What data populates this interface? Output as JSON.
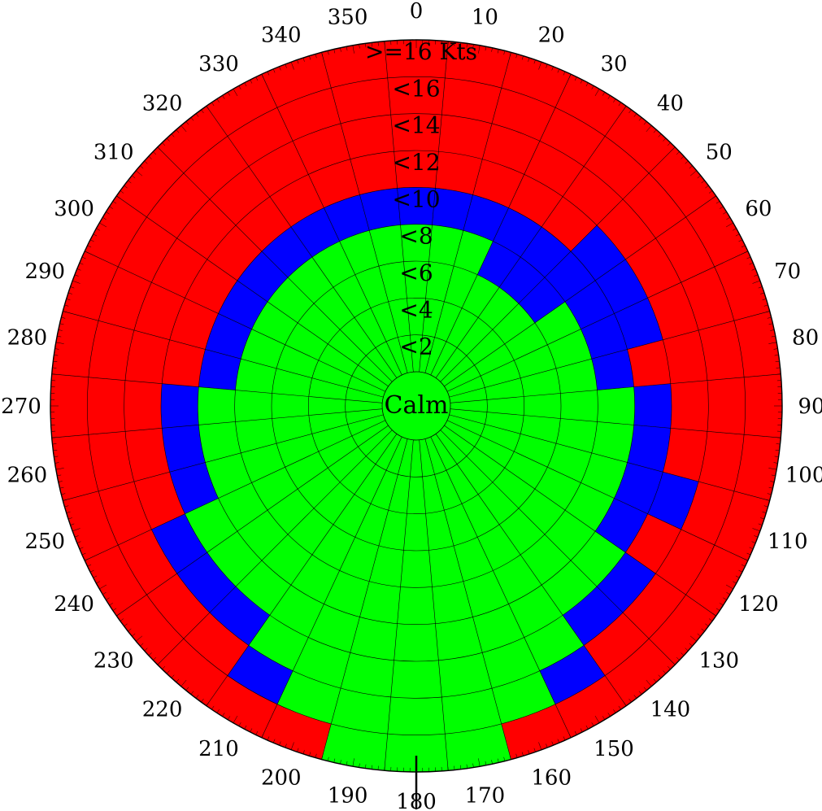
{
  "chart_data": {
    "type": "polar-area",
    "title": "",
    "center_label": "Calm",
    "unit": "Kts",
    "ring_labels": [
      "<2",
      "<4",
      "<6",
      "<8",
      "<10",
      "<12",
      "<14",
      "<16",
      ">=16 Kts"
    ],
    "ring_edges": [
      2,
      4,
      6,
      8,
      10,
      12,
      14,
      16,
      18
    ],
    "r_range": [
      0,
      18
    ],
    "direction_labels": [
      "0",
      "10",
      "20",
      "30",
      "40",
      "50",
      "60",
      "70",
      "80",
      "90",
      "100",
      "110",
      "120",
      "130",
      "140",
      "150",
      "160",
      "170",
      "180",
      "190",
      "200",
      "210",
      "220",
      "230",
      "240",
      "250",
      "260",
      "270",
      "280",
      "290",
      "300",
      "310",
      "320",
      "330",
      "340",
      "350"
    ],
    "direction_step_deg": 10,
    "colors": {
      "green": "#00ff00",
      "blue": "#0000ff",
      "red": "#ff0000",
      "grid": "#000000"
    },
    "sectors": [
      {
        "direction": 0,
        "green_to": 8,
        "blue_to": 10
      },
      {
        "direction": 10,
        "green_to": 8,
        "blue_to": 10
      },
      {
        "direction": 20,
        "green_to": 8,
        "blue_to": 10
      },
      {
        "direction": 30,
        "green_to": 6,
        "blue_to": 10
      },
      {
        "direction": 40,
        "green_to": 6,
        "blue_to": 10
      },
      {
        "direction": 50,
        "green_to": 6,
        "blue_to": 12
      },
      {
        "direction": 60,
        "green_to": 8,
        "blue_to": 12
      },
      {
        "direction": 70,
        "green_to": 8,
        "blue_to": 12
      },
      {
        "direction": 80,
        "green_to": 8,
        "blue_to": 10
      },
      {
        "direction": 90,
        "green_to": 10,
        "blue_to": 12
      },
      {
        "direction": 100,
        "green_to": 10,
        "blue_to": 12
      },
      {
        "direction": 110,
        "green_to": 10,
        "blue_to": 14
      },
      {
        "direction": 120,
        "green_to": 10,
        "blue_to": 12
      },
      {
        "direction": 130,
        "green_to": 12,
        "blue_to": 14
      },
      {
        "direction": 140,
        "green_to": 12,
        "blue_to": 14
      },
      {
        "direction": 150,
        "green_to": 14,
        "blue_to": 16
      },
      {
        "direction": 160,
        "green_to": 16,
        "blue_to": 16
      },
      {
        "direction": 170,
        "green_to": 18,
        "blue_to": 18
      },
      {
        "direction": 180,
        "green_to": 18,
        "blue_to": 18
      },
      {
        "direction": 190,
        "green_to": 18,
        "blue_to": 18
      },
      {
        "direction": 200,
        "green_to": 16,
        "blue_to": 16
      },
      {
        "direction": 210,
        "green_to": 14,
        "blue_to": 16
      },
      {
        "direction": 220,
        "green_to": 12,
        "blue_to": 14
      },
      {
        "direction": 230,
        "green_to": 12,
        "blue_to": 14
      },
      {
        "direction": 240,
        "green_to": 12,
        "blue_to": 14
      },
      {
        "direction": 250,
        "green_to": 10,
        "blue_to": 12
      },
      {
        "direction": 260,
        "green_to": 10,
        "blue_to": 12
      },
      {
        "direction": 270,
        "green_to": 10,
        "blue_to": 12
      },
      {
        "direction": 280,
        "green_to": 8,
        "blue_to": 10
      },
      {
        "direction": 290,
        "green_to": 8,
        "blue_to": 10
      },
      {
        "direction": 300,
        "green_to": 8,
        "blue_to": 10
      },
      {
        "direction": 310,
        "green_to": 8,
        "blue_to": 10
      },
      {
        "direction": 320,
        "green_to": 8,
        "blue_to": 10
      },
      {
        "direction": 330,
        "green_to": 8,
        "blue_to": 10
      },
      {
        "direction": 340,
        "green_to": 8,
        "blue_to": 10
      },
      {
        "direction": 350,
        "green_to": 8,
        "blue_to": 10
      }
    ]
  }
}
